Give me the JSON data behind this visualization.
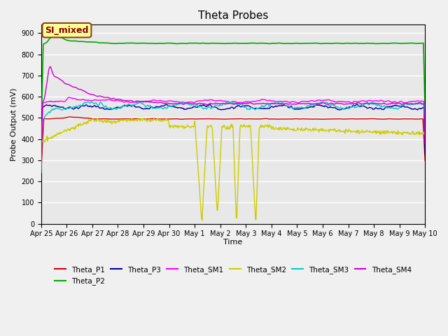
{
  "title": "Theta Probes",
  "ylabel": "Probe Output (mV)",
  "xlabel": "Time",
  "annotation_text": "SI_mixed",
  "annotation_color": "#8B0000",
  "annotation_bg": "#FFFF99",
  "annotation_border": "#8B4513",
  "xlim_days": 15,
  "ylim": [
    0,
    940
  ],
  "yticks": [
    0,
    100,
    200,
    300,
    400,
    500,
    600,
    700,
    800,
    900
  ],
  "xtick_labels": [
    "Apr 25",
    "Apr 26",
    "Apr 27",
    "Apr 28",
    "Apr 29",
    "Apr 30",
    "May 1",
    "May 2",
    "May 3",
    "May 4",
    "May 5",
    "May 6",
    "May 7",
    "May 8",
    "May 9",
    "May 10"
  ],
  "series_colors": {
    "Theta_P1": "#CC0000",
    "Theta_P2": "#00AA00",
    "Theta_P3": "#000099",
    "Theta_SM1": "#FF00FF",
    "Theta_SM2": "#CCCC00",
    "Theta_SM3": "#00CCCC",
    "Theta_SM4": "#CC00CC"
  },
  "bg_color": "#E8E8E8",
  "grid_color": "#FFFFFF"
}
